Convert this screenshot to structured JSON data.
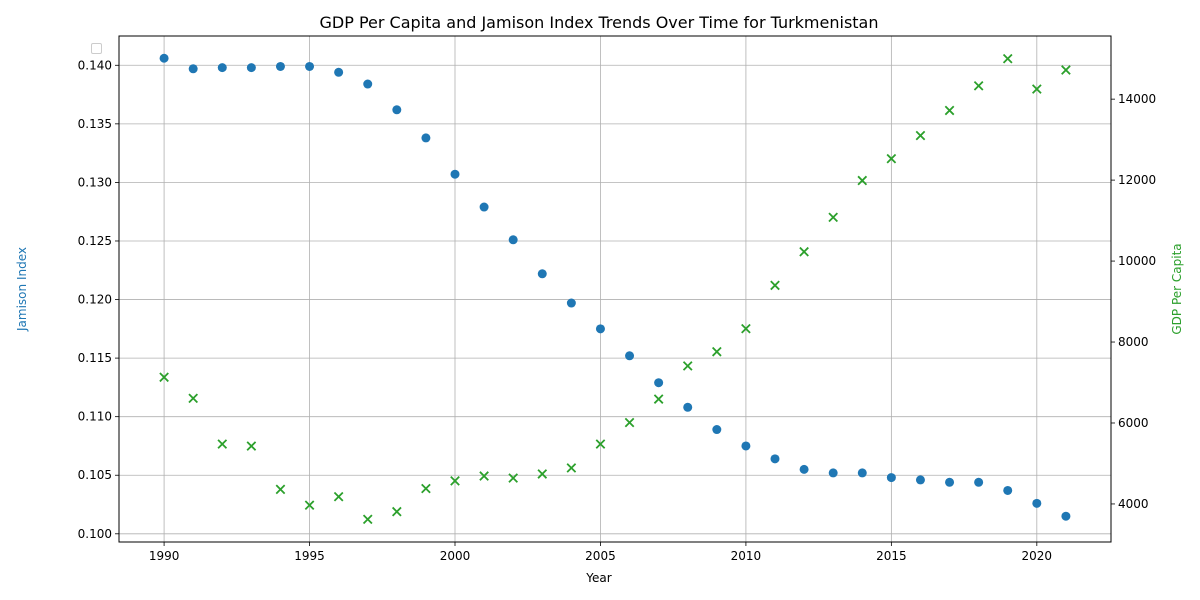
{
  "chart_data": {
    "type": "scatter",
    "title": "GDP Per Capita and Jamison Index Trends Over Time for Turkmenistan",
    "xlabel": "Year",
    "ylabel_left": "Jamison Index",
    "ylabel_right": "GDP Per Capita",
    "xlim": [
      1988.45,
      2022.55
    ],
    "ylim_left": [
      0.0993,
      0.1425
    ],
    "ylim_right": [
      3060,
      15560
    ],
    "x_ticks": [
      1990,
      1995,
      2000,
      2005,
      2010,
      2015,
      2020
    ],
    "y_ticks_left": [
      0.1,
      0.105,
      0.11,
      0.115,
      0.12,
      0.125,
      0.13,
      0.135,
      0.14
    ],
    "y_ticks_right": [
      4000,
      6000,
      8000,
      10000,
      12000,
      14000
    ],
    "grid": true,
    "legend": "top-left",
    "colors": {
      "left": "#1f77b4",
      "right": "#2ca02c"
    },
    "x": [
      1990,
      1991,
      1992,
      1993,
      1994,
      1995,
      1996,
      1997,
      1998,
      1999,
      2000,
      2001,
      2002,
      2003,
      2004,
      2005,
      2006,
      2007,
      2008,
      2009,
      2010,
      2011,
      2012,
      2013,
      2014,
      2015,
      2016,
      2017,
      2018,
      2019,
      2020,
      2021
    ],
    "series": [
      {
        "axis": "left",
        "marker": "circle",
        "values": [
          0.1406,
          0.1397,
          0.1398,
          0.1398,
          0.1399,
          0.1399,
          0.1394,
          0.1384,
          0.1362,
          0.1338,
          0.1307,
          0.1279,
          0.1251,
          0.1222,
          0.1197,
          0.1175,
          0.1152,
          0.1129,
          0.1108,
          0.1089,
          0.1075,
          0.1064,
          0.1055,
          0.1052,
          0.1052,
          0.1048,
          0.1046,
          0.1044,
          0.1044,
          0.1037,
          0.1026,
          0.1015
        ]
      },
      {
        "axis": "right",
        "marker": "x",
        "values": [
          7130,
          6610,
          5480,
          5430,
          4360,
          3970,
          4180,
          3620,
          3810,
          4380,
          4570,
          4690,
          4640,
          4740,
          4890,
          5480,
          6010,
          6590,
          7410,
          7760,
          8330,
          9400,
          10230,
          11080,
          11990,
          12530,
          13100,
          13720,
          14330,
          15000,
          14250,
          14720
        ]
      }
    ]
  }
}
